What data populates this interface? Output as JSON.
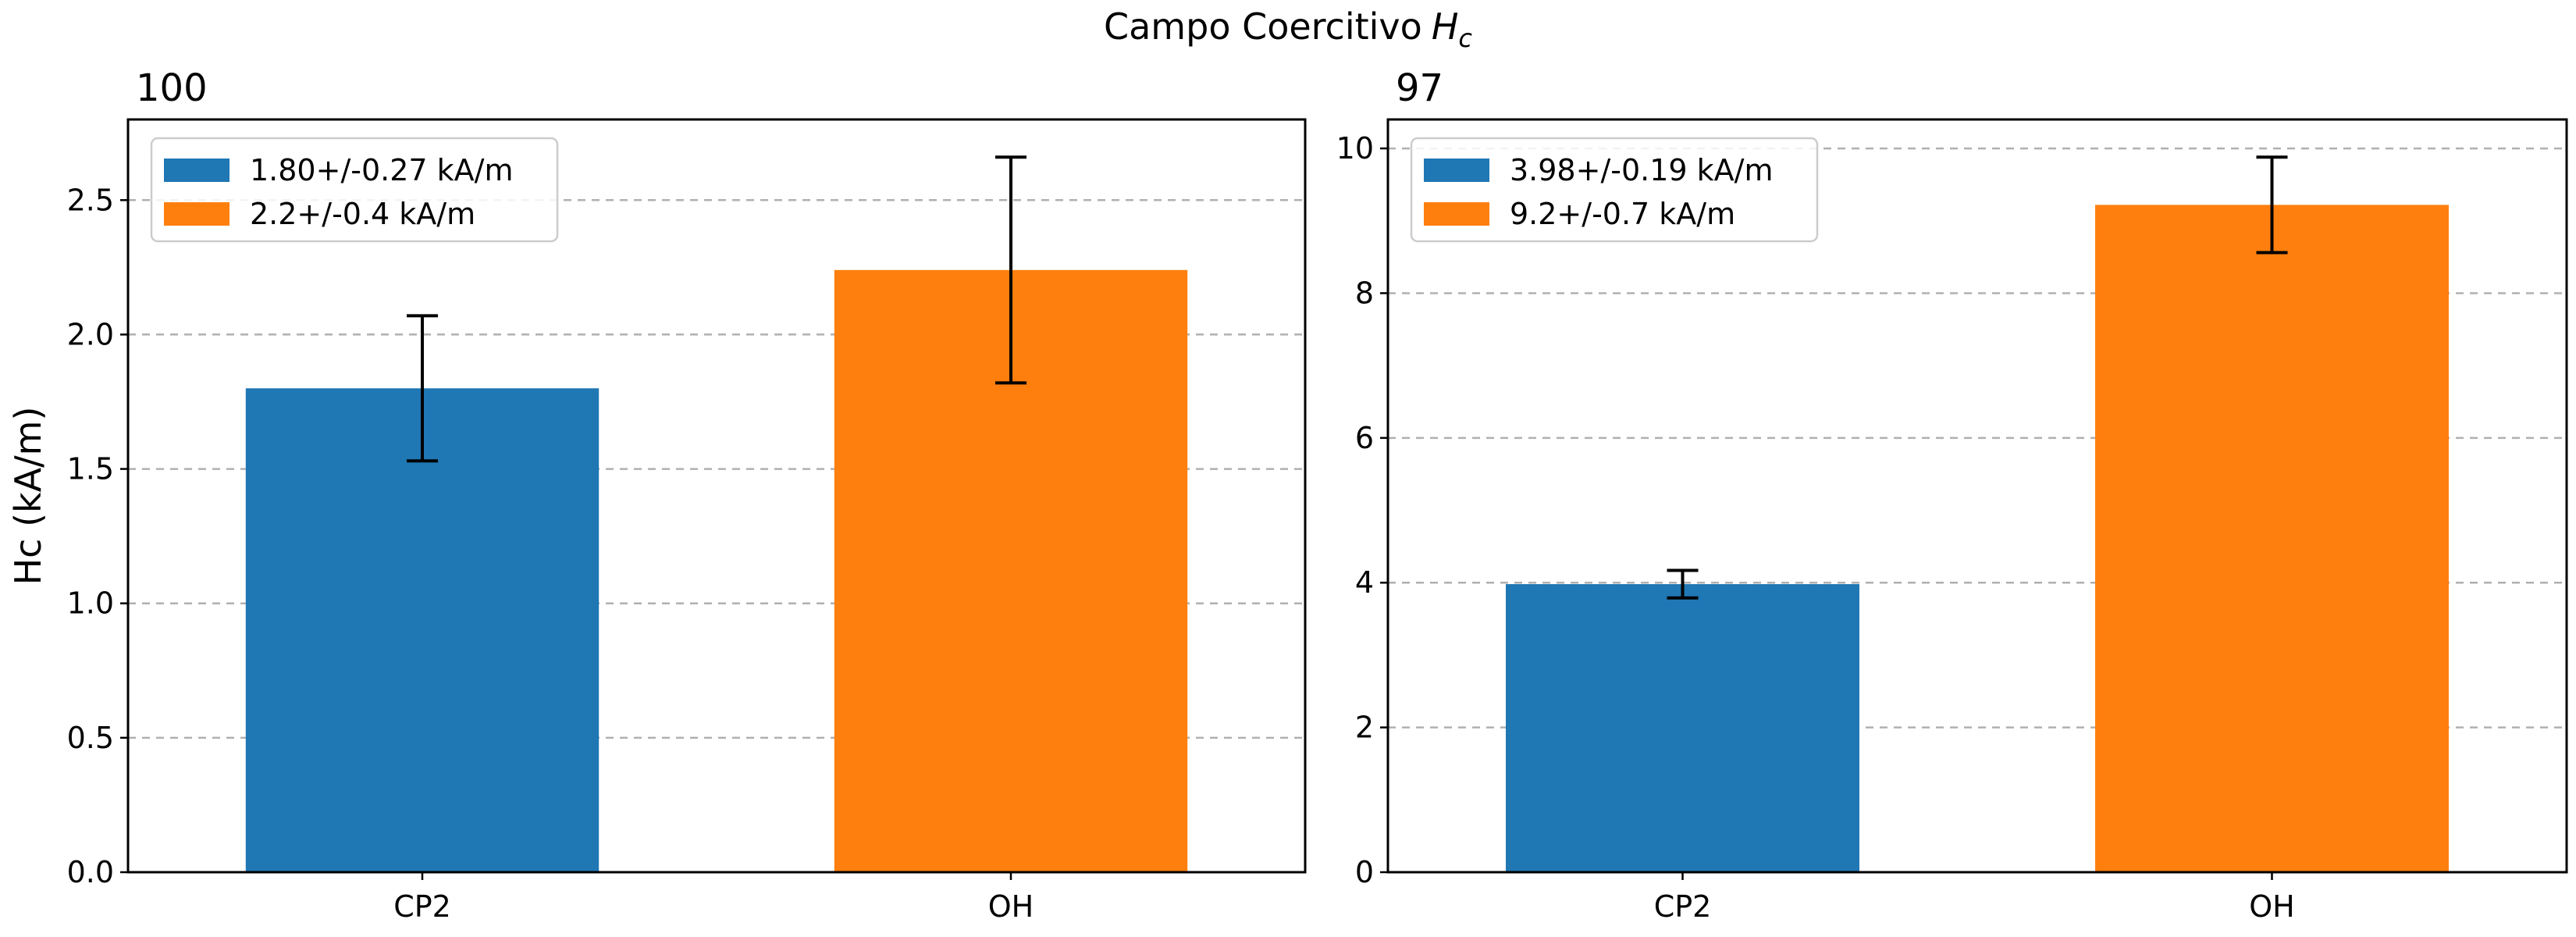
{
  "figure": {
    "title": "Campo Coercitivo",
    "title_symbol": "H",
    "title_subscript": "c"
  },
  "chart_data": [
    {
      "type": "bar",
      "title": "100",
      "categories": [
        "CP2",
        "OH"
      ],
      "values": [
        1.8,
        2.24
      ],
      "errors": [
        0.27,
        0.42
      ],
      "colors": [
        "#1f77b4",
        "#ff7f0e"
      ],
      "legend": [
        "1.80+/-0.27 kA/m",
        "2.2+/-0.4 kA/m"
      ],
      "legend_position": "top-left",
      "xlabel": "",
      "ylabel": "Hc (kA/m)",
      "ylim": [
        0,
        2.8
      ],
      "yticks": [
        "0.0",
        "0.5",
        "1.0",
        "1.5",
        "2.0",
        "2.5"
      ],
      "grid": "y-dashed"
    },
    {
      "type": "bar",
      "title": "97",
      "categories": [
        "CP2",
        "OH"
      ],
      "values": [
        3.98,
        9.22
      ],
      "errors": [
        0.19,
        0.66
      ],
      "colors": [
        "#1f77b4",
        "#ff7f0e"
      ],
      "legend": [
        "3.98+/-0.19 kA/m",
        "9.2+/-0.7 kA/m"
      ],
      "legend_position": "top-left",
      "xlabel": "",
      "ylabel": "",
      "ylim": [
        0,
        10.4
      ],
      "yticks": [
        "0",
        "2",
        "4",
        "6",
        "8",
        "10"
      ],
      "grid": "y-dashed"
    }
  ]
}
